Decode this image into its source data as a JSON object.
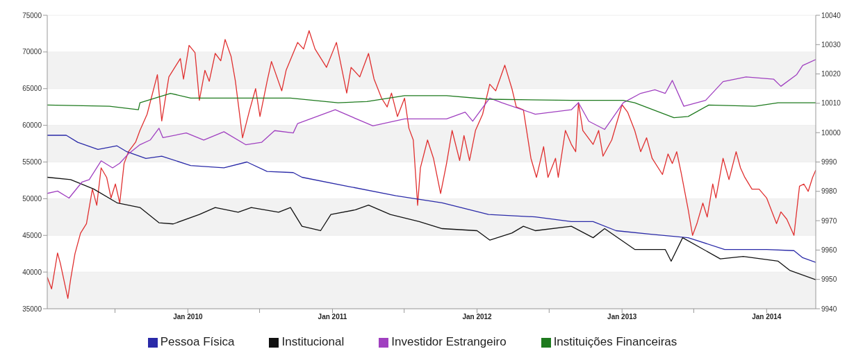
{
  "chart_data": {
    "type": "line",
    "xlim": [
      "2009-01-11",
      "2014-05-05"
    ],
    "xticks": [
      {
        "value": "2009-07-01",
        "label": null
      },
      {
        "value": "2010-01-01",
        "label": "Jan 2010"
      },
      {
        "value": "2010-07-01",
        "label": null
      },
      {
        "value": "2011-01-01",
        "label": "Jan 2011"
      },
      {
        "value": "2011-07-01",
        "label": null
      },
      {
        "value": "2012-01-01",
        "label": "Jan 2012"
      },
      {
        "value": "2012-07-01",
        "label": null
      },
      {
        "value": "2013-01-01",
        "label": "Jan 2013"
      },
      {
        "value": "2013-07-01",
        "label": null
      },
      {
        "value": "2014-01-01",
        "label": "Jan 2014"
      }
    ],
    "ylim": [
      35000,
      75000
    ],
    "yticks": [
      35000,
      40000,
      45000,
      50000,
      55000,
      60000,
      65000,
      70000,
      75000
    ],
    "y2lim": [
      9940,
      10040
    ],
    "y2ticks": [
      9940,
      9950,
      9960,
      9970,
      9980,
      9990,
      10000,
      10010,
      10020,
      10030,
      10040
    ],
    "grid": "y",
    "legend": "bottom",
    "series": [
      {
        "color": "#e03030",
        "x": [
          "2009-01-11",
          "2009-01-22",
          "2009-02-06",
          "2009-02-13",
          "2009-03-04",
          "2009-03-11",
          "2009-03-22",
          "2009-04-05",
          "2009-04-20",
          "2009-05-05",
          "2009-05-16",
          "2009-05-27",
          "2009-06-10",
          "2009-06-21",
          "2009-07-02",
          "2009-07-13",
          "2009-07-24",
          "2009-08-04",
          "2009-08-22",
          "2009-09-02",
          "2009-09-20",
          "2009-10-16",
          "2009-10-27",
          "2009-11-14",
          "2009-12-13",
          "2009-12-21",
          "2010-01-04",
          "2010-01-19",
          "2010-01-30",
          "2010-02-13",
          "2010-02-24",
          "2010-03-11",
          "2010-03-25",
          "2010-04-05",
          "2010-04-20",
          "2010-05-01",
          "2010-05-19",
          "2010-06-06",
          "2010-06-21",
          "2010-07-02",
          "2010-07-20",
          "2010-07-31",
          "2010-08-26",
          "2010-09-06",
          "2010-10-05",
          "2010-10-20",
          "2010-11-03",
          "2010-11-18",
          "2010-12-17",
          "2011-01-11",
          "2011-02-06",
          "2011-02-17",
          "2011-03-11",
          "2011-04-02",
          "2011-04-16",
          "2011-05-05",
          "2011-05-19",
          "2011-05-30",
          "2011-06-14",
          "2011-07-02",
          "2011-07-13",
          "2011-07-24",
          "2011-08-04",
          "2011-08-11",
          "2011-08-29",
          "2011-09-13",
          "2011-10-01",
          "2011-10-16",
          "2011-10-30",
          "2011-11-18",
          "2011-11-29",
          "2011-12-13",
          "2011-12-28",
          "2012-01-15",
          "2012-02-02",
          "2012-02-17",
          "2012-03-11",
          "2012-03-29",
          "2012-04-09",
          "2012-04-27",
          "2012-05-16",
          "2012-05-30",
          "2012-06-17",
          "2012-06-28",
          "2012-07-17",
          "2012-07-24",
          "2012-08-11",
          "2012-08-26",
          "2012-09-06",
          "2012-09-13",
          "2012-09-24",
          "2012-10-20",
          "2012-11-03",
          "2012-11-14",
          "2012-12-06",
          "2013-01-01",
          "2013-01-15",
          "2013-02-02",
          "2013-02-17",
          "2013-03-04",
          "2013-03-18",
          "2013-04-13",
          "2013-04-27",
          "2013-05-08",
          "2013-05-19",
          "2013-05-30",
          "2013-06-17",
          "2013-06-28",
          "2013-07-09",
          "2013-07-24",
          "2013-08-04",
          "2013-08-18",
          "2013-08-26",
          "2013-09-13",
          "2013-09-28",
          "2013-10-16",
          "2013-10-27",
          "2013-11-07",
          "2013-11-25",
          "2013-12-13",
          "2014-01-01",
          "2014-01-26",
          "2014-02-06",
          "2014-02-21",
          "2014-03-11",
          "2014-03-25",
          "2014-04-05",
          "2014-04-16",
          "2014-04-27",
          "2014-05-05"
        ],
        "values": [
          39300,
          37700,
          42600,
          41200,
          36400,
          39000,
          42500,
          45300,
          46600,
          51300,
          49100,
          54200,
          52900,
          50100,
          52000,
          49400,
          54800,
          56400,
          57700,
          59300,
          61500,
          66900,
          60600,
          66600,
          69100,
          66300,
          70900,
          69900,
          63400,
          67500,
          66000,
          69800,
          68800,
          71700,
          69400,
          66000,
          58300,
          62100,
          65000,
          61200,
          66000,
          68700,
          64700,
          67500,
          71300,
          70400,
          72900,
          70400,
          67900,
          71300,
          64400,
          67900,
          66600,
          69800,
          66300,
          63700,
          62500,
          64400,
          61200,
          63700,
          59600,
          58000,
          49100,
          54200,
          58000,
          55500,
          50700,
          54800,
          59300,
          55200,
          58600,
          55200,
          59300,
          61500,
          65600,
          64700,
          68200,
          65000,
          62500,
          62100,
          55500,
          52900,
          57100,
          52900,
          55500,
          52900,
          59300,
          57400,
          56400,
          63100,
          59300,
          57400,
          59300,
          55800,
          58000,
          62800,
          61800,
          59300,
          56400,
          58300,
          55500,
          53300,
          56100,
          54800,
          56400,
          53600,
          48500,
          45000,
          46600,
          49400,
          47500,
          52000,
          50100,
          55500,
          52600,
          56400,
          54200,
          52900,
          51300,
          51300,
          50100,
          46600,
          48200,
          47200,
          45000,
          51700,
          52000,
          51000,
          52900,
          53900
        ]
      },
      {
        "name": "Pessoa Física",
        "color": "#2a2aa8",
        "axis": "y2",
        "x": [
          "2009-01-11",
          "2009-02-28",
          "2009-03-29",
          "2009-05-19",
          "2009-07-06",
          "2009-07-31",
          "2009-09-17",
          "2009-10-27",
          "2010-01-08",
          "2010-04-02",
          "2010-05-30",
          "2010-07-20",
          "2010-09-24",
          "2010-10-16",
          "2011-02-13",
          "2011-06-10",
          "2011-10-05",
          "2012-01-30",
          "2012-05-27",
          "2012-08-26",
          "2012-10-20",
          "2012-12-17",
          "2013-03-15",
          "2013-06-17",
          "2013-09-17",
          "2014-01-01",
          "2014-03-11",
          "2014-04-02",
          "2014-05-05"
        ],
        "values": [
          9999.1,
          9999.1,
          9996.7,
          9994.3,
          9995.5,
          9993.5,
          9991.2,
          9992.0,
          9988.8,
          9988.0,
          9990.0,
          9986.8,
          9986.4,
          9984.8,
          9981.6,
          9978.5,
          9976.1,
          9972.1,
          9971.3,
          9969.7,
          9969.7,
          9966.6,
          9965.4,
          9964.2,
          9960.2,
          9960.2,
          9959.8,
          9957.4,
          9955.8
        ]
      },
      {
        "name": "Institucional",
        "color": "#111111",
        "axis": "y2",
        "x": [
          "2009-01-11",
          "2009-03-11",
          "2009-05-08",
          "2009-07-06",
          "2009-09-02",
          "2009-10-20",
          "2009-11-25",
          "2010-01-30",
          "2010-03-11",
          "2010-05-08",
          "2010-06-10",
          "2010-08-18",
          "2010-09-17",
          "2010-10-16",
          "2010-12-02",
          "2010-12-28",
          "2011-02-28",
          "2011-04-02",
          "2011-05-27",
          "2011-08-08",
          "2011-10-05",
          "2012-01-01",
          "2012-02-02",
          "2012-03-29",
          "2012-04-27",
          "2012-05-27",
          "2012-08-26",
          "2012-10-20",
          "2012-11-18",
          "2013-02-02",
          "2013-04-20",
          "2013-05-05",
          "2013-06-03",
          "2013-09-06",
          "2013-11-03",
          "2014-01-30",
          "2014-02-28",
          "2014-05-05"
        ],
        "values": [
          9984.8,
          9984.0,
          9980.8,
          9976.1,
          9974.5,
          9969.3,
          9968.9,
          9972.1,
          9974.5,
          9972.9,
          9974.5,
          9972.9,
          9974.5,
          9968.1,
          9966.6,
          9972.1,
          9973.7,
          9975.3,
          9972.1,
          9969.7,
          9967.3,
          9966.6,
          9963.4,
          9965.8,
          9968.1,
          9966.6,
          9968.1,
          9964.2,
          9967.3,
          9960.2,
          9960.2,
          9956.2,
          9964.2,
          9957.0,
          9957.8,
          9956.2,
          9953.1,
          9949.9
        ]
      },
      {
        "name": "Investidor Estrangeiro",
        "color": "#a040c0",
        "axis": "y2",
        "x": [
          "2009-01-11",
          "2009-02-06",
          "2009-03-07",
          "2009-04-09",
          "2009-04-27",
          "2009-05-27",
          "2009-06-25",
          "2009-07-13",
          "2009-08-04",
          "2009-09-02",
          "2009-09-28",
          "2009-10-20",
          "2009-10-30",
          "2009-12-28",
          "2010-02-10",
          "2010-04-02",
          "2010-05-27",
          "2010-07-06",
          "2010-08-08",
          "2010-09-24",
          "2010-10-05",
          "2011-01-08",
          "2011-04-13",
          "2011-07-02",
          "2011-10-16",
          "2011-12-02",
          "2011-12-21",
          "2012-02-02",
          "2012-03-04",
          "2012-05-27",
          "2012-08-26",
          "2012-09-13",
          "2012-10-09",
          "2012-11-18",
          "2013-01-04",
          "2013-02-17",
          "2013-03-25",
          "2013-04-20",
          "2013-05-08",
          "2013-06-06",
          "2013-07-31",
          "2013-09-13",
          "2013-11-10",
          "2014-01-19",
          "2014-02-06",
          "2014-03-18",
          "2014-04-02",
          "2014-05-05"
        ],
        "values": [
          9979.3,
          9980.1,
          9977.7,
          9983.2,
          9984.0,
          9990.4,
          9988.0,
          9989.6,
          9992.8,
          9995.9,
          9997.5,
          10001.5,
          9998.3,
          9999.9,
          9997.5,
          10000.3,
          9995.9,
          9996.7,
          10000.7,
          9999.9,
          10003.1,
          10007.8,
          10002.3,
          10004.7,
          10004.7,
          10007.0,
          10003.9,
          10011.8,
          10010.2,
          10006.3,
          10007.8,
          10010.2,
          10003.9,
          10001.1,
          10010.2,
          10013.4,
          10014.6,
          10013.4,
          10017.8,
          10009.0,
          10011.0,
          10017.4,
          10019.0,
          10018.2,
          10015.8,
          10019.8,
          10022.9,
          10024.9
        ]
      },
      {
        "name": "Instituições Financeiras",
        "color": "#1e7a1e",
        "axis": "y2",
        "x": [
          "2009-01-11",
          "2009-06-17",
          "2009-08-29",
          "2009-09-02",
          "2009-11-18",
          "2010-01-08",
          "2010-09-17",
          "2011-01-15",
          "2011-03-29",
          "2011-07-02",
          "2011-10-16",
          "2012-01-30",
          "2012-08-26",
          "2013-01-04",
          "2013-02-02",
          "2013-05-12",
          "2013-06-17",
          "2013-08-08",
          "2013-12-02",
          "2014-01-30",
          "2014-05-05"
        ],
        "values": [
          10009.4,
          10009.0,
          10007.8,
          10010.2,
          10013.4,
          10011.8,
          10011.8,
          10010.2,
          10010.6,
          10012.6,
          10012.6,
          10011.4,
          10011.0,
          10011.0,
          10010.2,
          10005.1,
          10005.5,
          10009.4,
          10009.0,
          10010.2,
          10010.2
        ]
      }
    ]
  }
}
